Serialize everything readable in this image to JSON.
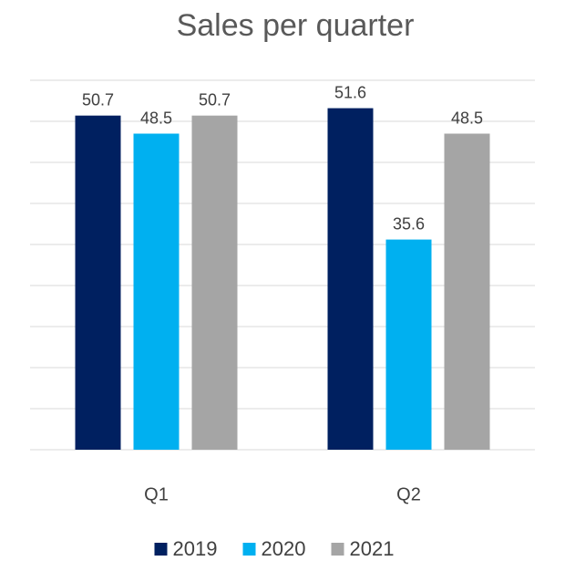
{
  "chart_data": {
    "type": "bar",
    "title": "Sales per quarter",
    "categories": [
      "Q1",
      "Q2"
    ],
    "series": [
      {
        "name": "2019",
        "color": "#002060",
        "values": [
          50.7,
          51.6
        ]
      },
      {
        "name": "2020",
        "color": "#00b0f0",
        "values": [
          48.5,
          35.6
        ]
      },
      {
        "name": "2021",
        "color": "#a5a5a5",
        "values": [
          50.7,
          48.5
        ]
      }
    ],
    "ylim": [
      10,
      55
    ],
    "yticks": [
      10,
      15,
      20,
      25,
      30,
      35,
      40,
      45,
      50,
      55
    ],
    "grid": true,
    "legend": "bottom"
  }
}
